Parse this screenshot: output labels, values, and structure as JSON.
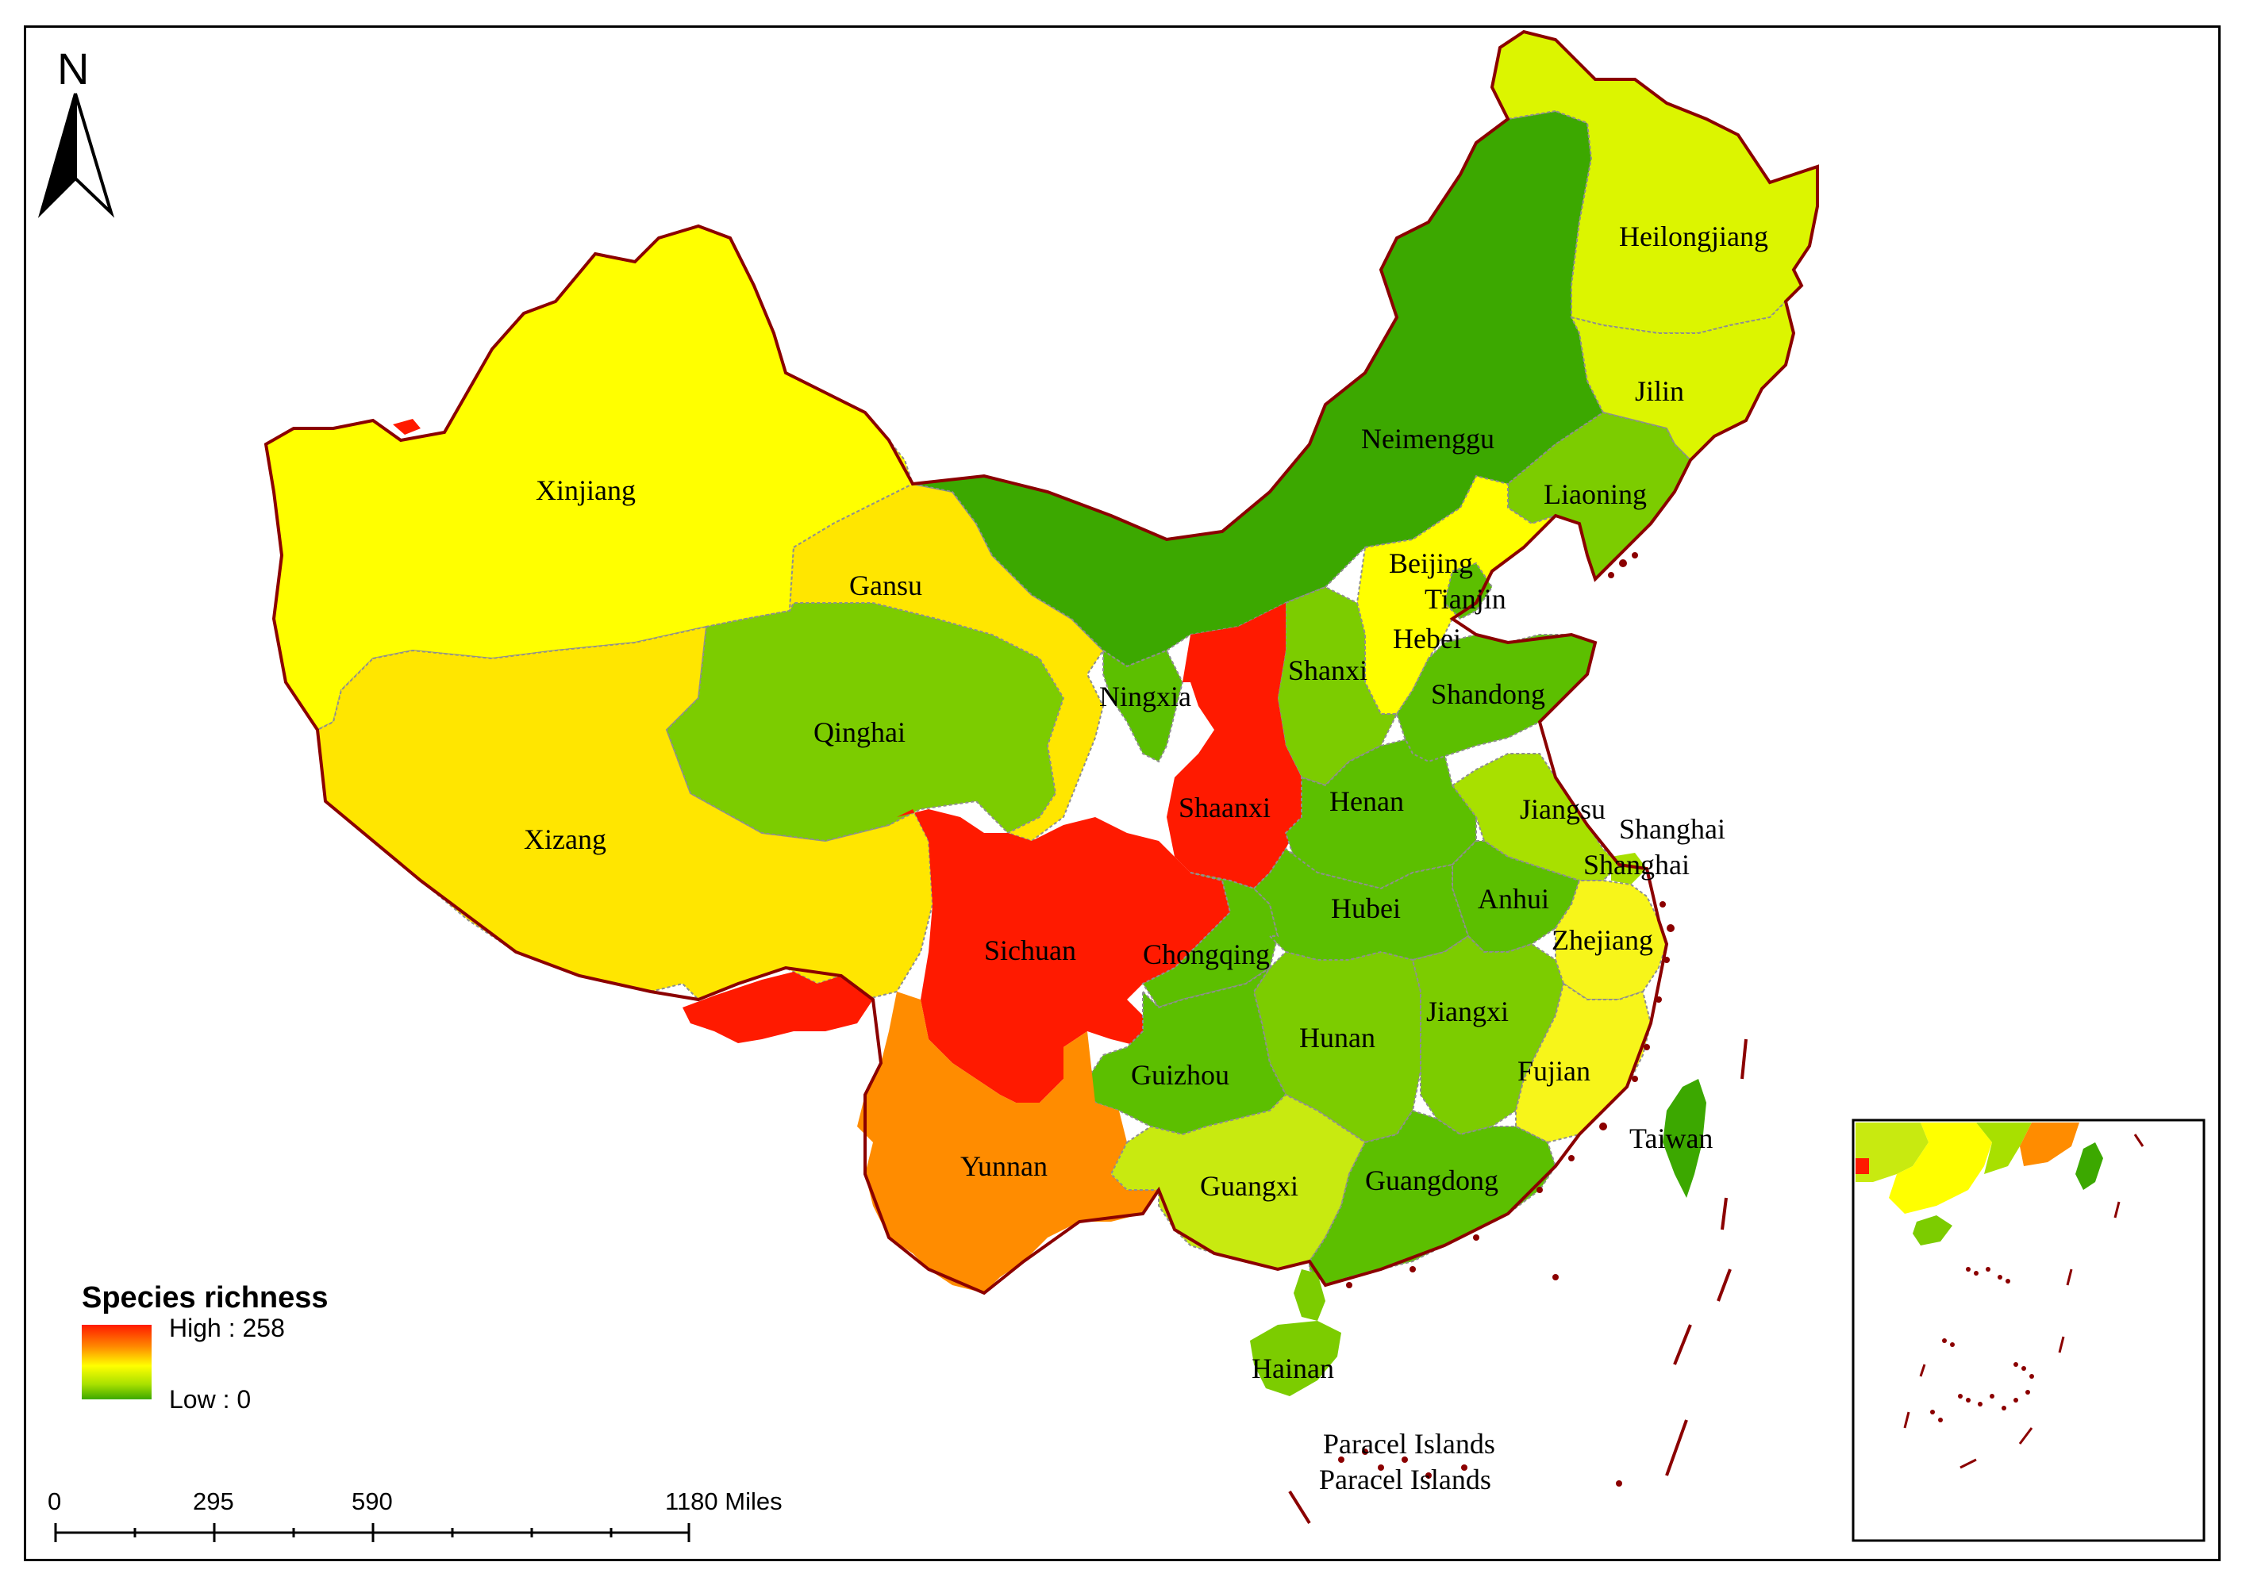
{
  "legend": {
    "title": "Species richness",
    "high_label": "High : 258",
    "low_label": "Low : 0",
    "high_value": 258,
    "low_value": 0
  },
  "north_arrow": {
    "label": "N",
    "icon": "north-arrow-icon"
  },
  "scale_bar": {
    "tick_labels": [
      "0",
      "295",
      "590",
      "1180 Miles"
    ]
  },
  "colors": {
    "red": "#ff1a00",
    "orange": "#ff8c00",
    "yellow": "#ffff00",
    "yellow_dark": "#ffe600",
    "yellow_light": "#f7f51a",
    "lime": "#dcf500",
    "yellow_green": "#c8ea10",
    "light_green": "#a8e000",
    "mid_green": "#7ccc00",
    "green": "#5cbf00",
    "dark_green": "#3ca800",
    "border": "#8b0000"
  },
  "provinces": [
    {
      "name": "Xinjiang",
      "label": "Xinjiang",
      "color": "yellow"
    },
    {
      "name": "Xizang",
      "label": "Xizang",
      "color": "yellow_dark"
    },
    {
      "name": "Qinghai",
      "label": "Qinghai",
      "color": "mid_green"
    },
    {
      "name": "Gansu",
      "label": "Gansu",
      "color": "yellow_dark"
    },
    {
      "name": "Neimenggu",
      "label": "Neimenggu",
      "color": "dark_green"
    },
    {
      "name": "Heilongjiang",
      "label": "Heilongjiang",
      "color": "lime"
    },
    {
      "name": "Jilin",
      "label": "Jilin",
      "color": "lime"
    },
    {
      "name": "Liaoning",
      "label": "Liaoning",
      "color": "mid_green"
    },
    {
      "name": "Beijing",
      "label": "Beijing",
      "color": "yellow"
    },
    {
      "name": "Tianjin",
      "label": "Tianjin",
      "color": "green"
    },
    {
      "name": "Hebei",
      "label": "Hebei",
      "color": "yellow"
    },
    {
      "name": "Shanxi",
      "label": "Shanxi",
      "color": "mid_green"
    },
    {
      "name": "Ningxia",
      "label": "Ningxia",
      "color": "green"
    },
    {
      "name": "Shaanxi",
      "label": "Shaanxi",
      "color": "red"
    },
    {
      "name": "Shandong",
      "label": "Shandong",
      "color": "green"
    },
    {
      "name": "Henan",
      "label": "Henan",
      "color": "green"
    },
    {
      "name": "Jiangsu",
      "label": "Jiangsu",
      "color": "light_green"
    },
    {
      "name": "Shanghai",
      "label": "Shanghai",
      "color": "light_green"
    },
    {
      "name": "Shanghai2",
      "label": "Shanghai",
      "color": "light_green"
    },
    {
      "name": "Anhui",
      "label": "Anhui",
      "color": "green"
    },
    {
      "name": "Hubei",
      "label": "Hubei",
      "color": "green"
    },
    {
      "name": "Sichuan",
      "label": "Sichuan",
      "color": "red"
    },
    {
      "name": "Chongqing",
      "label": "Chongqing",
      "color": "green"
    },
    {
      "name": "Zhejiang",
      "label": "Zhejiang",
      "color": "yellow_light"
    },
    {
      "name": "Hunan",
      "label": "Hunan",
      "color": "mid_green"
    },
    {
      "name": "Jiangxi",
      "label": "Jiangxi",
      "color": "mid_green"
    },
    {
      "name": "Fujian",
      "label": "Fujian",
      "color": "yellow_light"
    },
    {
      "name": "Guizhou",
      "label": "Guizhou",
      "color": "green"
    },
    {
      "name": "Yunnan",
      "label": "Yunnan",
      "color": "orange"
    },
    {
      "name": "Guangxi",
      "label": "Guangxi",
      "color": "yellow_green"
    },
    {
      "name": "Guangdong",
      "label": "Guangdong",
      "color": "green"
    },
    {
      "name": "Taiwan",
      "label": "Taiwan",
      "color": "dark_green"
    },
    {
      "name": "Hainan",
      "label": "Hainan",
      "color": "mid_green"
    },
    {
      "name": "Paracel1",
      "label": "Paracel Islands",
      "color": ""
    },
    {
      "name": "Paracel2",
      "label": "Paracel Islands",
      "color": ""
    }
  ]
}
